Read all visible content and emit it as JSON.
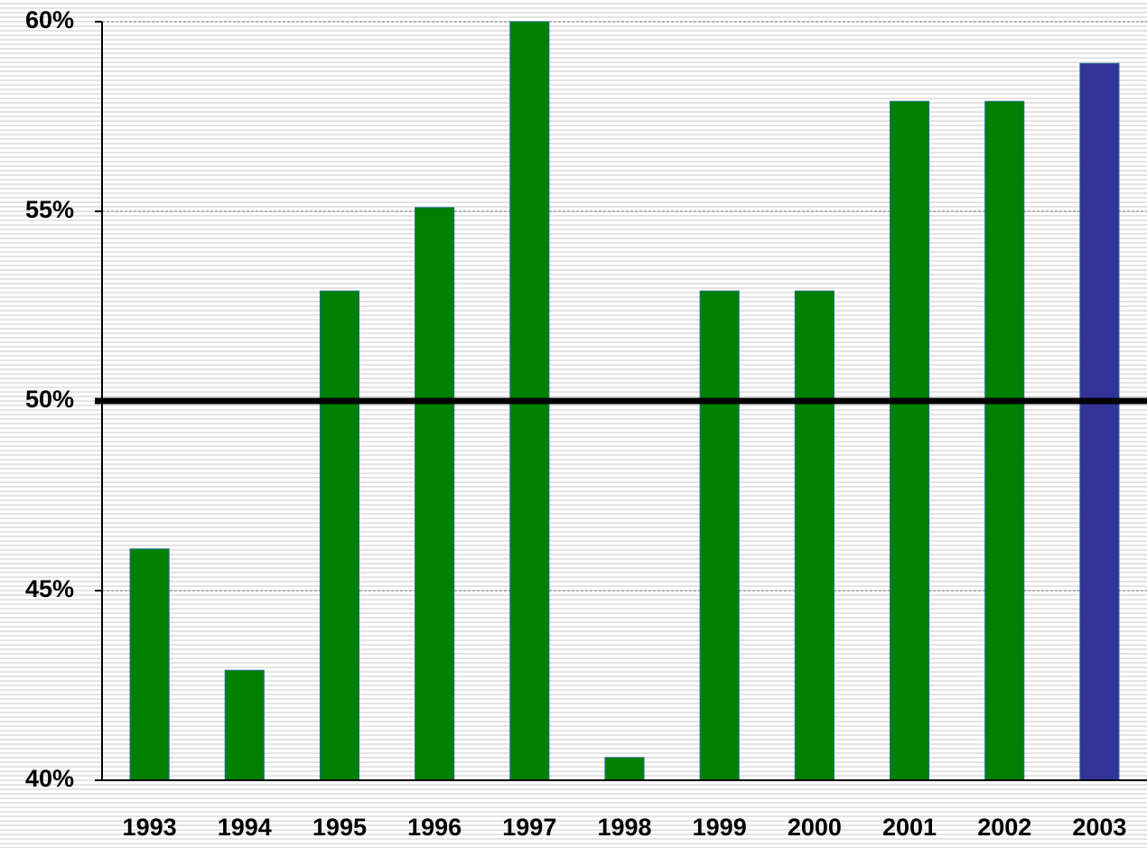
{
  "chart_data": {
    "type": "bar",
    "categories": [
      "1993",
      "1994",
      "1995",
      "1996",
      "1997",
      "1998",
      "1999",
      "2000",
      "2001",
      "2002",
      "2003"
    ],
    "values": [
      46.1,
      42.9,
      52.9,
      55.1,
      60,
      40.6,
      52.9,
      52.9,
      57.9,
      57.9,
      58.9
    ],
    "colors": [
      "#008000",
      "#008000",
      "#008000",
      "#008000",
      "#008000",
      "#008000",
      "#008000",
      "#008000",
      "#008000",
      "#008000",
      "#333399"
    ],
    "ylim": [
      40,
      60
    ],
    "yticks": [
      {
        "value": 40,
        "label": "40%"
      },
      {
        "value": 45,
        "label": "45%"
      },
      {
        "value": 50,
        "label": "50%"
      },
      {
        "value": 55,
        "label": "55%"
      },
      {
        "value": 60,
        "label": "60%"
      }
    ],
    "grid": true,
    "reference_line": 50
  }
}
